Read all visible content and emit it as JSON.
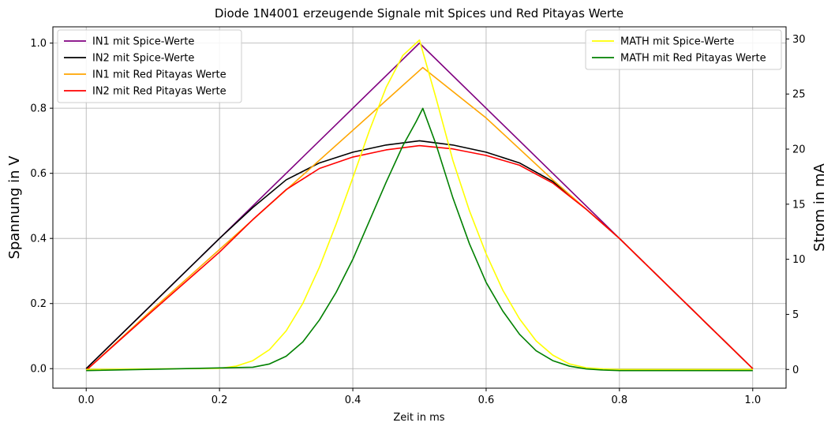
{
  "chart_data": {
    "type": "line",
    "title": "Diode 1N4001 erzeugende Signale mit Spices und Red Pitayas Werte",
    "xlabel": "Zeit in ms",
    "ylabel_left": "Spannung in V",
    "ylabel_right": "Strom in mA",
    "xlim": [
      -0.05,
      1.05
    ],
    "ylim_left": [
      -0.06,
      1.05
    ],
    "ylim_right": [
      -1.7,
      31.1
    ],
    "x_ticks": [
      "0.0",
      "0.2",
      "0.4",
      "0.6",
      "0.8",
      "1.0"
    ],
    "y_left_ticks": [
      "0.0",
      "0.2",
      "0.4",
      "0.6",
      "0.8",
      "1.0"
    ],
    "y_right_ticks": [
      "0",
      "5",
      "10",
      "15",
      "20",
      "25",
      "30"
    ],
    "grid": true,
    "legend_left_placement": "upper-left",
    "legend_right_placement": "upper-right",
    "series": [
      {
        "name": "IN1 mit Spice-Werte",
        "axis": "left",
        "color": "#800080",
        "x": [
          0,
          0.1,
          0.2,
          0.3,
          0.4,
          0.5,
          0.6,
          0.7,
          0.8,
          0.9,
          1.0
        ],
        "y": [
          0,
          0.2,
          0.4,
          0.6,
          0.8,
          1.0,
          0.8,
          0.6,
          0.4,
          0.2,
          0
        ]
      },
      {
        "name": "IN2 mit Spice-Werte",
        "axis": "left",
        "color": "#000000",
        "x": [
          0,
          0.05,
          0.1,
          0.15,
          0.2,
          0.25,
          0.3,
          0.35,
          0.4,
          0.45,
          0.5,
          0.55,
          0.6,
          0.65,
          0.7,
          0.75,
          0.8,
          0.85,
          0.9,
          0.95,
          1.0
        ],
        "y": [
          0,
          0.1,
          0.2,
          0.3,
          0.4,
          0.495,
          0.58,
          0.632,
          0.665,
          0.687,
          0.7,
          0.687,
          0.665,
          0.632,
          0.575,
          0.49,
          0.4,
          0.3,
          0.2,
          0.1,
          0
        ]
      },
      {
        "name": "IN1 mit Red Pitayas Werte",
        "axis": "left",
        "color": "#FFA500",
        "x": [
          0,
          0.1,
          0.2,
          0.3,
          0.4,
          0.505,
          0.6,
          0.7,
          0.8,
          0.9,
          1.0
        ],
        "y": [
          -0.005,
          0.183,
          0.366,
          0.549,
          0.732,
          0.925,
          0.77,
          0.58,
          0.4,
          0.2,
          0
        ]
      },
      {
        "name": "IN2 mit Red Pitayas Werte",
        "axis": "left",
        "color": "#FF0000",
        "x": [
          0,
          0.05,
          0.1,
          0.15,
          0.2,
          0.25,
          0.3,
          0.35,
          0.4,
          0.45,
          0.5,
          0.55,
          0.6,
          0.65,
          0.7,
          0.75,
          0.8,
          0.85,
          0.9,
          0.95,
          1.0
        ],
        "y": [
          -0.005,
          0.087,
          0.178,
          0.268,
          0.358,
          0.458,
          0.55,
          0.615,
          0.65,
          0.672,
          0.685,
          0.675,
          0.655,
          0.625,
          0.57,
          0.49,
          0.4,
          0.3,
          0.2,
          0.1,
          0
        ]
      },
      {
        "name": "MATH mit Spice-Werte",
        "axis": "right",
        "color": "#FFFF00",
        "x": [
          0,
          0.2,
          0.225,
          0.25,
          0.275,
          0.3,
          0.325,
          0.35,
          0.375,
          0.4,
          0.425,
          0.45,
          0.475,
          0.5,
          0.525,
          0.55,
          0.575,
          0.6,
          0.625,
          0.65,
          0.675,
          0.7,
          0.725,
          0.75,
          0.775,
          0.8,
          1.0
        ],
        "y": [
          0,
          0.1,
          0.3,
          0.8,
          1.8,
          3.5,
          6.0,
          9.3,
          13.2,
          17.4,
          21.7,
          25.6,
          28.5,
          29.9,
          24.6,
          19.0,
          14.4,
          10.5,
          7.2,
          4.6,
          2.6,
          1.3,
          0.5,
          0.15,
          0.05,
          0,
          0
        ]
      },
      {
        "name": "MATH mit Red Pitayas Werte",
        "axis": "right",
        "color": "#008000",
        "x": [
          0,
          0.25,
          0.275,
          0.3,
          0.325,
          0.35,
          0.375,
          0.4,
          0.425,
          0.45,
          0.475,
          0.495,
          0.505,
          0.525,
          0.55,
          0.575,
          0.6,
          0.625,
          0.65,
          0.675,
          0.7,
          0.725,
          0.75,
          0.775,
          0.8,
          1.0
        ],
        "y": [
          -0.1,
          0.2,
          0.5,
          1.2,
          2.5,
          4.5,
          7.0,
          10.0,
          13.5,
          17.0,
          20.3,
          22.5,
          23.7,
          20.4,
          15.6,
          11.4,
          7.9,
          5.3,
          3.2,
          1.7,
          0.8,
          0.3,
          0.05,
          -0.05,
          -0.1,
          -0.1
        ]
      }
    ]
  }
}
